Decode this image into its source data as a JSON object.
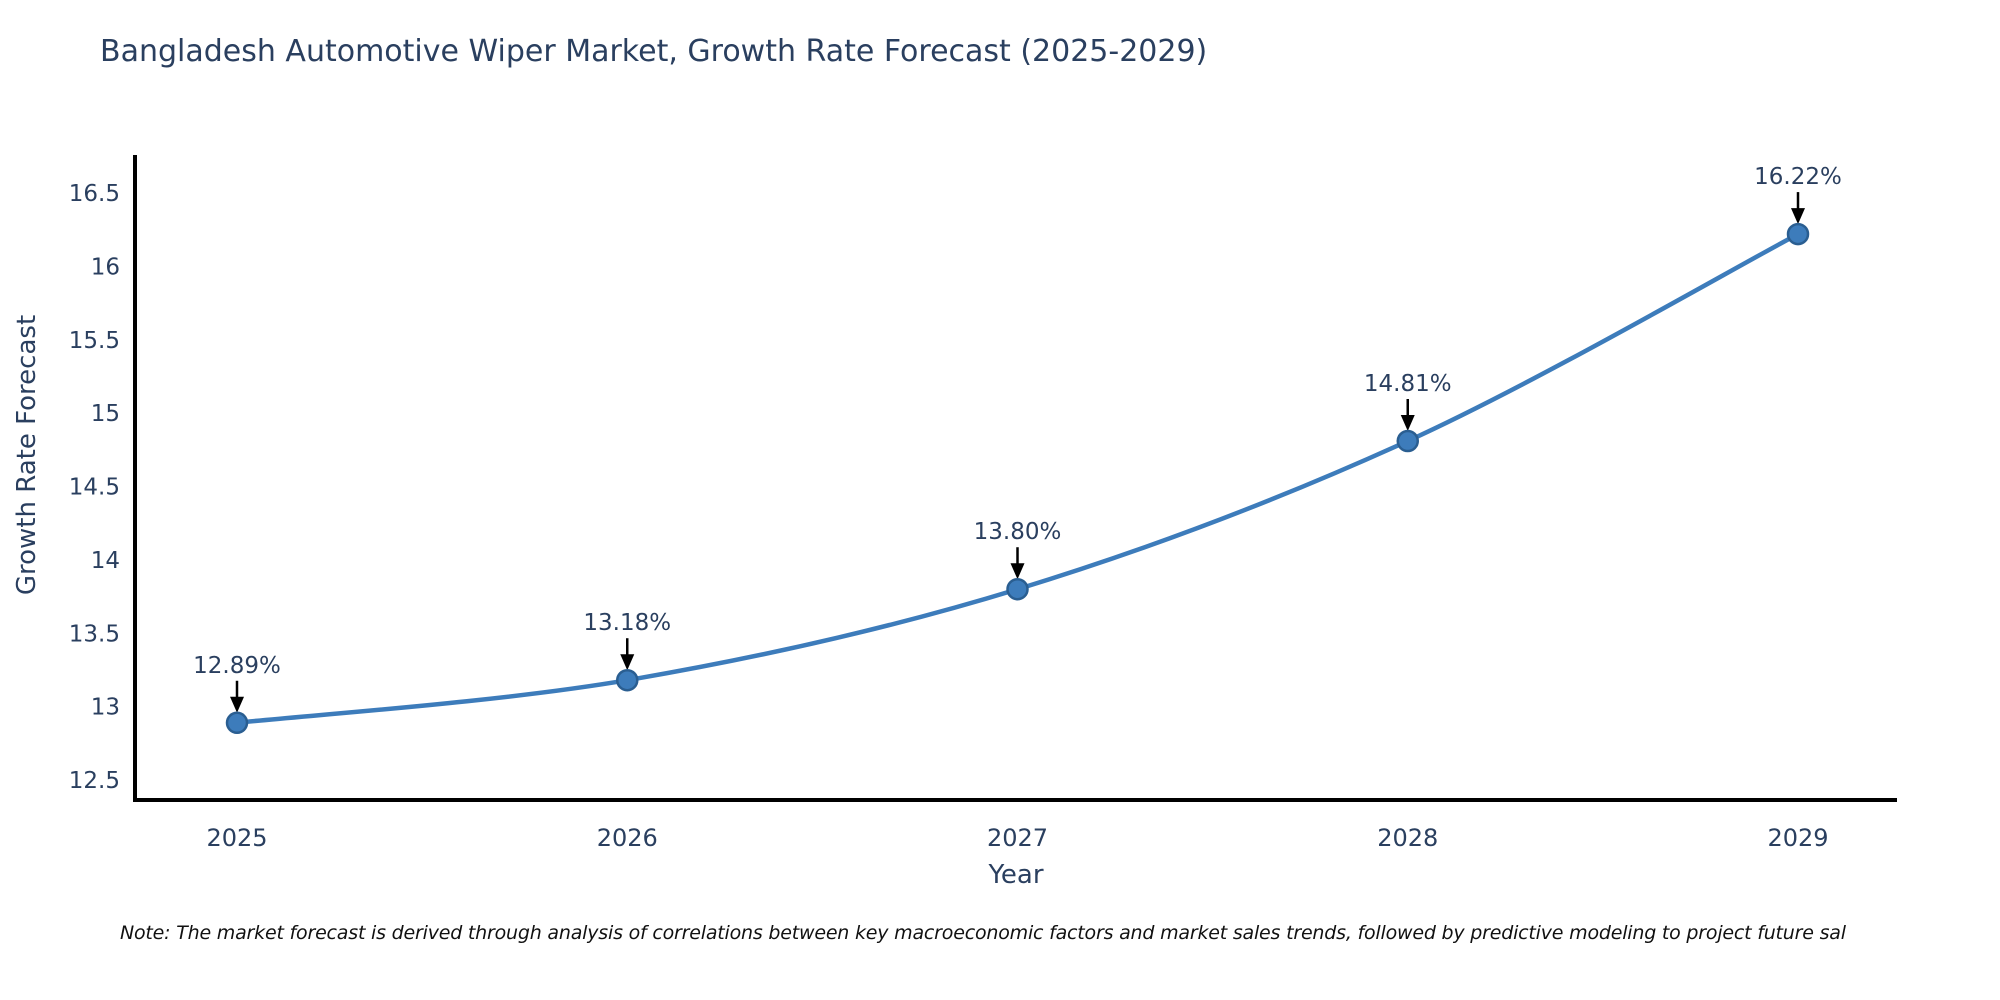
{
  "chart_data": {
    "type": "line",
    "title": "Bangladesh Automotive Wiper Market, Growth Rate Forecast (2025-2029)",
    "xlabel": "Year",
    "ylabel": "Growth Rate Forecast",
    "x": [
      2025,
      2026,
      2027,
      2028,
      2029
    ],
    "series": [
      {
        "name": "Growth Rate Forecast",
        "values": [
          12.89,
          13.18,
          13.8,
          14.81,
          16.22
        ]
      }
    ],
    "point_labels": [
      "12.89%",
      "13.18%",
      "13.80%",
      "14.81%",
      "16.22%"
    ],
    "xtick_labels": [
      "2025",
      "2026",
      "2027",
      "2028",
      "2029"
    ],
    "yticks": [
      12.5,
      13,
      13.5,
      14,
      14.5,
      15,
      15.5,
      16,
      16.5
    ],
    "ytick_labels": [
      "12.5",
      "13",
      "13.5",
      "14",
      "14.5",
      "15",
      "15.5",
      "16",
      "16.5"
    ],
    "ylim": [
      12.36,
      16.9
    ],
    "grid": false,
    "legend": false,
    "line_style": "spline",
    "marker_style": "circle",
    "annotation_style": "arrow-down",
    "colors": {
      "line": "#3d7cbb",
      "marker_fill": "#3d7cbb",
      "marker_edge": "#2a5e91",
      "axis": "#000000",
      "tick_text": "#2a3f5f",
      "annotation_text": "#2a3f5f",
      "arrow": "#000000"
    }
  },
  "note": {
    "text": "Note: The market forecast is derived through analysis of correlations between key macroeconomic factors and market sales trends, followed by predictive modeling to project future sal"
  }
}
